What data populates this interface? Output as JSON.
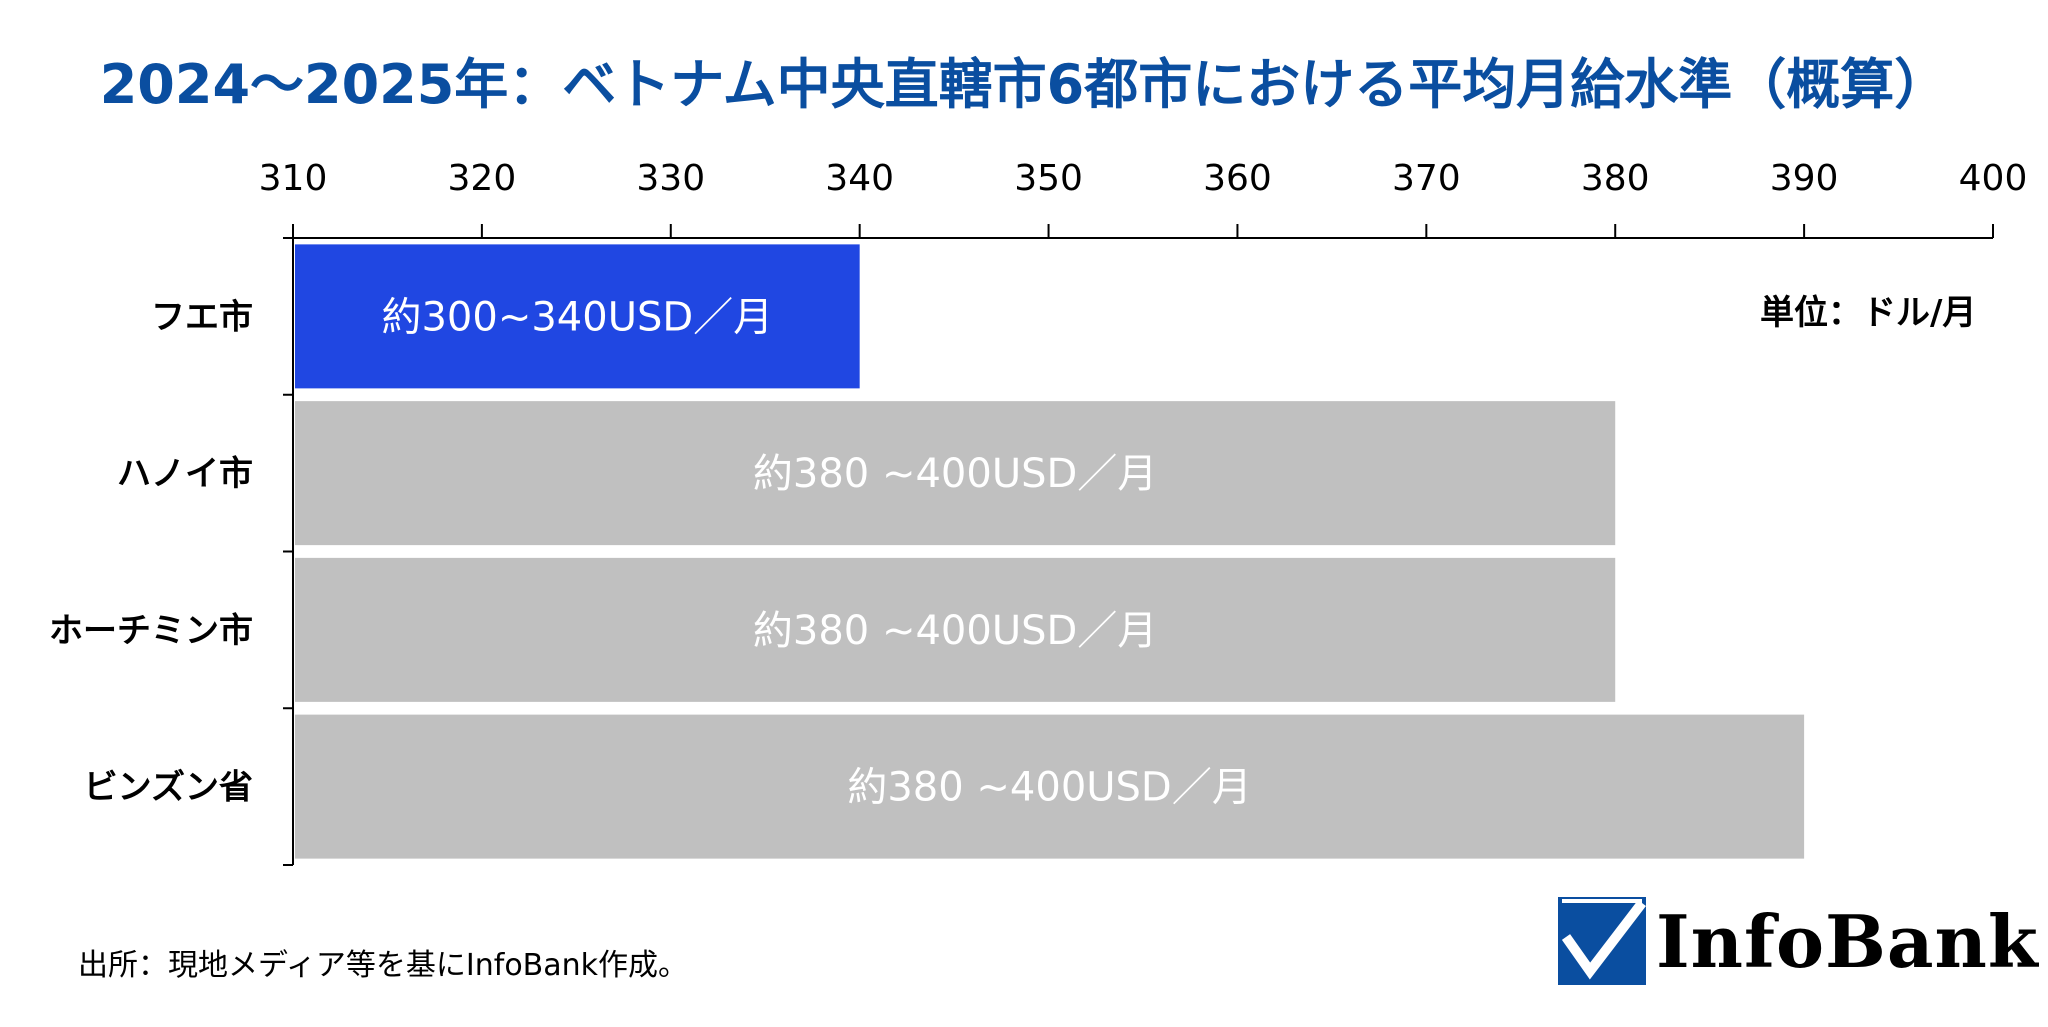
{
  "chart_data": {
    "type": "bar",
    "orientation": "horizontal",
    "title": "2024〜2025年：ベトナム中央直轄市6都市における平均月給水準（概算）",
    "unit": "単位：ドル/月",
    "source": "出所：現地メディア等を基にInfoBank作成。",
    "xlim": [
      310,
      400
    ],
    "xticks": [
      310,
      320,
      330,
      340,
      350,
      360,
      370,
      380,
      390,
      400
    ],
    "axis_position": "top",
    "categories": [
      "フエ市",
      "ハノイ市",
      "ホーチミン市",
      "ビンズン省"
    ],
    "values": [
      340,
      380,
      380,
      390
    ],
    "bar_labels": [
      "約300~340USD／月",
      "約380 ~400USD／月",
      "約380 ~400USD／月",
      "約380 ~400USD／月"
    ],
    "colors": [
      "#2047e2",
      "#c0c0c0",
      "#c0c0c0",
      "#c0c0c0"
    ],
    "grid": false
  },
  "logo": {
    "text": "InfoBank",
    "mark_icon": "checkmark-icon",
    "color": "#0a4ea0"
  }
}
